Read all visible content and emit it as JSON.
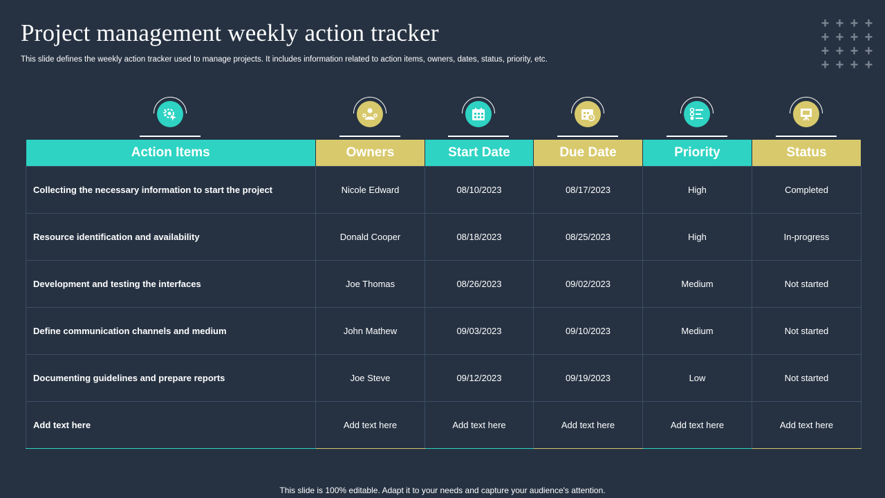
{
  "slide": {
    "title": "Project management weekly action tracker",
    "subtitle": "This slide defines the weekly action tracker used to manage projects. It includes information related to action items, owners, dates, status, priority, etc.",
    "footer": "This slide is 100% editable. Adapt it to your needs and capture your audience's attention."
  },
  "colors": {
    "background": "#263242",
    "teal": "#2ed3c3",
    "gold": "#d8c96d",
    "grid_line": "#3d4d63"
  },
  "icons": [
    "settings-cursor-icon",
    "person-gear-icon",
    "calendar-icon",
    "calendar-clock-icon",
    "priority-list-icon",
    "presentation-board-icon"
  ],
  "table": {
    "headers": [
      "Action Items",
      "Owners",
      "Start Date",
      "Due Date",
      "Priority",
      "Status"
    ],
    "rows": [
      [
        "Collecting the necessary information to start  the project",
        "Nicole Edward",
        "08/10/2023",
        "08/17/2023",
        "High",
        "Completed"
      ],
      [
        "Resource identification and availability",
        "Donald  Cooper",
        "08/18/2023",
        "08/25/2023",
        "High",
        "In-progress"
      ],
      [
        "Development and testing  the interfaces",
        "Joe Thomas",
        "08/26/2023",
        "09/02/2023",
        "Medium",
        "Not started"
      ],
      [
        "Define communication channels and medium",
        "John Mathew",
        "09/03/2023",
        "09/10/2023",
        "Medium",
        "Not started"
      ],
      [
        "Documenting guidelines and prepare reports",
        "Joe  Steve",
        "09/12/2023",
        "09/19/2023",
        "Low",
        "Not started"
      ],
      [
        "Add text here",
        "Add text here",
        "Add text here",
        "Add text here",
        "Add text here",
        "Add text here"
      ]
    ]
  }
}
